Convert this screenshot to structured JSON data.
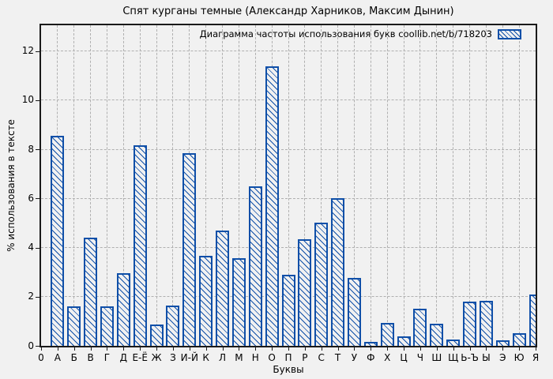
{
  "figure": {
    "title": "Спят курганы темные (Александр Харников, Максим Дынин)"
  },
  "legend": {
    "label": "Диаграмма частоты использования букв coollib.net/b/718203"
  },
  "axes": {
    "x_label": "Буквы",
    "y_label": "% использования в тексте",
    "origin_tick_label": "0",
    "y_ticks": [
      0,
      2,
      4,
      6,
      8,
      10,
      12
    ]
  },
  "colors": {
    "bar_hatch_blue": "#0f4fa8",
    "background_gray": "#f1f1f1",
    "grid_gray": "#b0b0b0",
    "axis_black": "#1a1a1a"
  },
  "chart_data": {
    "type": "bar",
    "title": "Спят курганы темные (Александр Харников, Максим Дынин)",
    "xlabel": "Буквы",
    "ylabel": "% использования в тексте",
    "legend_entry": "Диаграмма частоты использования букв coollib.net/b/718203",
    "legend_position": "top-right-inside",
    "grid": true,
    "bar_style": "blue-diagonal-hatch",
    "origin_label": "0",
    "yticks": [
      0,
      2,
      4,
      6,
      8,
      10,
      12
    ],
    "ylim": [
      0,
      13.05
    ],
    "categories": [
      "А",
      "Б",
      "В",
      "Г",
      "Д",
      "Е-Ё",
      "Ж",
      "З",
      "И-Й",
      "К",
      "Л",
      "М",
      "Н",
      "О",
      "П",
      "Р",
      "С",
      "Т",
      "У",
      "Ф",
      "Х",
      "Ц",
      "Ч",
      "Ш",
      "Щ",
      "Ь-Ъ",
      "Ы",
      "Э",
      "Ю",
      "Я"
    ],
    "values": [
      8.55,
      1.62,
      4.42,
      1.62,
      2.95,
      8.17,
      0.88,
      1.65,
      7.85,
      3.65,
      4.7,
      3.57,
      6.5,
      11.38,
      2.88,
      4.35,
      5.02,
      6.02,
      2.75,
      0.15,
      0.92,
      0.4,
      1.52,
      0.9,
      0.25,
      1.8,
      1.82,
      0.22,
      0.5,
      2.1
    ]
  }
}
